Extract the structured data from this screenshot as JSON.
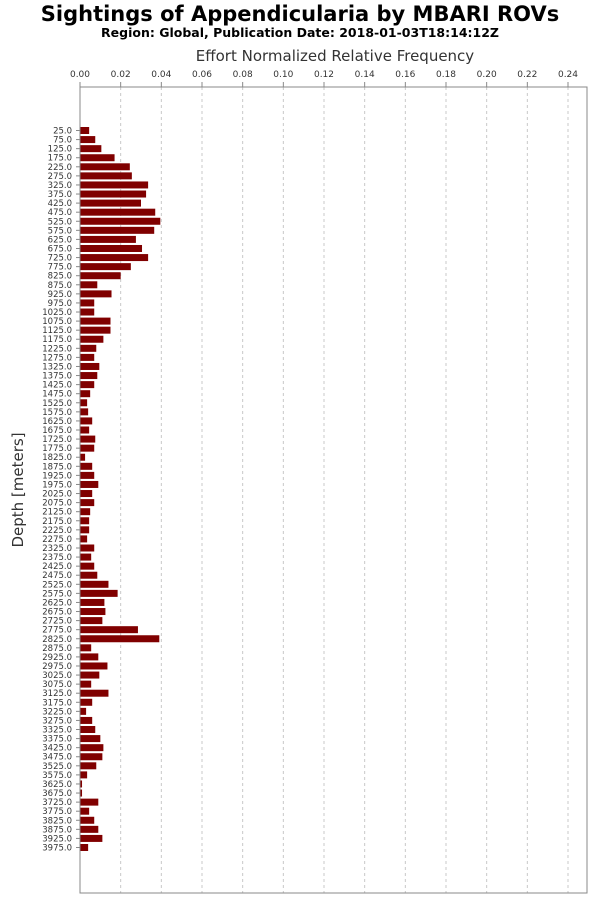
{
  "title": "Sightings of Appendicularia by MBARI ROVs",
  "subtitle": "Region: Global, Publication Date: 2018-01-03T18:14:12Z",
  "chart_data": {
    "type": "bar",
    "orientation": "horizontal",
    "xlabel": "Effort Normalized Relative Frequency",
    "ylabel": "Depth [meters]",
    "xlim": [
      0,
      0.25
    ],
    "xticks": [
      "0.00",
      "0.02",
      "0.04",
      "0.06",
      "0.08",
      "0.10",
      "0.12",
      "0.14",
      "0.16",
      "0.18",
      "0.20",
      "0.22",
      "0.24"
    ],
    "bar_color": "#800000",
    "grid": true,
    "categories": [
      "25.0",
      "75.0",
      "125.0",
      "175.0",
      "225.0",
      "275.0",
      "325.0",
      "375.0",
      "425.0",
      "475.0",
      "525.0",
      "575.0",
      "625.0",
      "675.0",
      "725.0",
      "775.0",
      "825.0",
      "875.0",
      "925.0",
      "975.0",
      "1025.0",
      "1075.0",
      "1125.0",
      "1175.0",
      "1225.0",
      "1275.0",
      "1325.0",
      "1375.0",
      "1425.0",
      "1475.0",
      "1525.0",
      "1575.0",
      "1625.0",
      "1675.0",
      "1725.0",
      "1775.0",
      "1825.0",
      "1875.0",
      "1925.0",
      "1975.0",
      "2025.0",
      "2075.0",
      "2125.0",
      "2175.0",
      "2225.0",
      "2275.0",
      "2325.0",
      "2375.0",
      "2425.0",
      "2475.0",
      "2525.0",
      "2575.0",
      "2625.0",
      "2675.0",
      "2725.0",
      "2775.0",
      "2825.0",
      "2875.0",
      "2925.0",
      "2975.0",
      "3025.0",
      "3075.0",
      "3125.0",
      "3175.0",
      "3225.0",
      "3275.0",
      "3325.0",
      "3375.0",
      "3425.0",
      "3475.0",
      "3525.0",
      "3575.0",
      "3625.0",
      "3675.0",
      "3725.0",
      "3775.0",
      "3825.0",
      "3875.0",
      "3925.0",
      "3975.0"
    ],
    "values": [
      0.0045,
      0.0075,
      0.0105,
      0.017,
      0.0245,
      0.0255,
      0.0335,
      0.0325,
      0.03,
      0.037,
      0.0395,
      0.0365,
      0.0275,
      0.0305,
      0.0335,
      0.025,
      0.02,
      0.0085,
      0.0155,
      0.007,
      0.007,
      0.015,
      0.015,
      0.0115,
      0.008,
      0.007,
      0.0095,
      0.0085,
      0.007,
      0.005,
      0.0035,
      0.004,
      0.006,
      0.0045,
      0.0075,
      0.007,
      0.0025,
      0.006,
      0.007,
      0.009,
      0.006,
      0.007,
      0.005,
      0.0045,
      0.0045,
      0.0035,
      0.007,
      0.0055,
      0.007,
      0.0085,
      0.014,
      0.0185,
      0.012,
      0.0125,
      0.011,
      0.0285,
      0.039,
      0.0055,
      0.009,
      0.0135,
      0.0095,
      0.0055,
      0.014,
      0.006,
      0.003,
      0.006,
      0.0075,
      0.01,
      0.0115,
      0.011,
      0.008,
      0.0035,
      0.001,
      0.001,
      0.009,
      0.0045,
      0.007,
      0.009,
      0.011,
      0.004
    ]
  }
}
